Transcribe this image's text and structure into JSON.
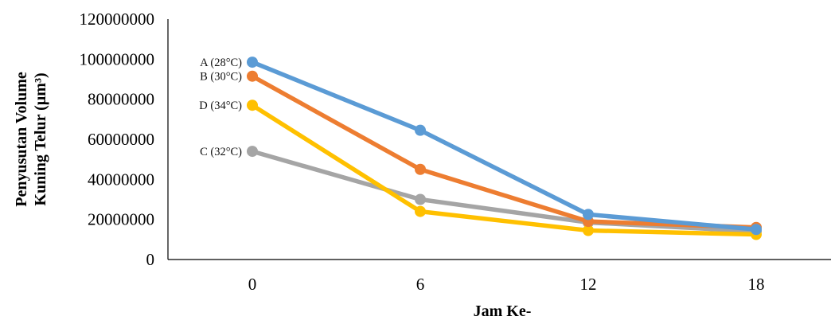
{
  "chart_data": {
    "type": "line",
    "x": [
      0,
      6,
      12,
      18
    ],
    "xlabel": "Jam Ke-",
    "ylabel_lines": [
      "Penyusutan Volume",
      "Kuning Telur (µm³)"
    ],
    "ylim": [
      0,
      120000000
    ],
    "yticks": [
      "0",
      "20000000",
      "40000000",
      "60000000",
      "80000000",
      "100000000",
      "120000000"
    ],
    "xticks": [
      "0",
      "6",
      "12",
      "18"
    ],
    "grid": false,
    "legend": "none",
    "series": [
      {
        "name": "A (28°C)",
        "color": "#5B9BD5",
        "values": [
          98500000,
          64500000,
          22500000,
          15000000
        ]
      },
      {
        "name": "B (30°C)",
        "color": "#ED7D31",
        "values": [
          91500000,
          45000000,
          19000000,
          16000000
        ]
      },
      {
        "name": "D (34°C)",
        "color": "#FFC000",
        "values": [
          77000000,
          24000000,
          14500000,
          12500000
        ]
      },
      {
        "name": "C (32°C)",
        "color": "#A5A5A5",
        "values": [
          54000000,
          30000000,
          18500000,
          14000000
        ]
      }
    ]
  }
}
